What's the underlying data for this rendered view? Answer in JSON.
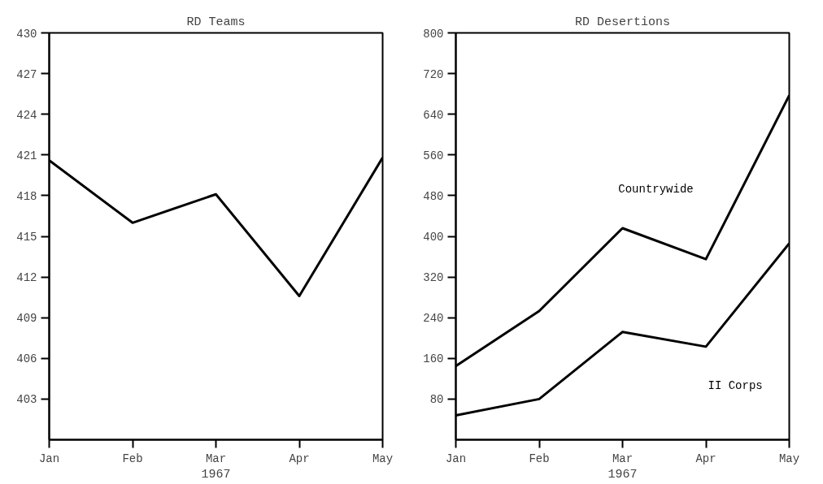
{
  "chart_data": [
    {
      "type": "line",
      "title": "RD Teams",
      "xlabel": "1967",
      "categories": [
        "Jan",
        "Feb",
        "Mar",
        "Apr",
        "May"
      ],
      "ylim": [
        400,
        430
      ],
      "yticks": [
        403,
        406,
        409,
        412,
        415,
        418,
        421,
        424,
        427,
        430
      ],
      "grid": false,
      "series": [
        {
          "color": "#000000",
          "values": [
            420.6,
            416.0,
            418.1,
            410.6,
            420.8
          ]
        }
      ]
    },
    {
      "type": "line",
      "title": "RD Desertions",
      "xlabel": "1967",
      "categories": [
        "Jan",
        "Feb",
        "Mar",
        "Apr",
        "May"
      ],
      "ylim": [
        0,
        800
      ],
      "yticks": [
        80,
        160,
        240,
        320,
        400,
        480,
        560,
        640,
        720,
        800
      ],
      "grid": false,
      "series": [
        {
          "name": "Countrywide",
          "color": "#000000",
          "values": [
            145,
            253,
            416,
            355,
            677
          ]
        },
        {
          "name": "II Corps",
          "color": "#000000",
          "values": [
            48,
            80,
            212,
            183,
            386
          ]
        }
      ]
    }
  ]
}
